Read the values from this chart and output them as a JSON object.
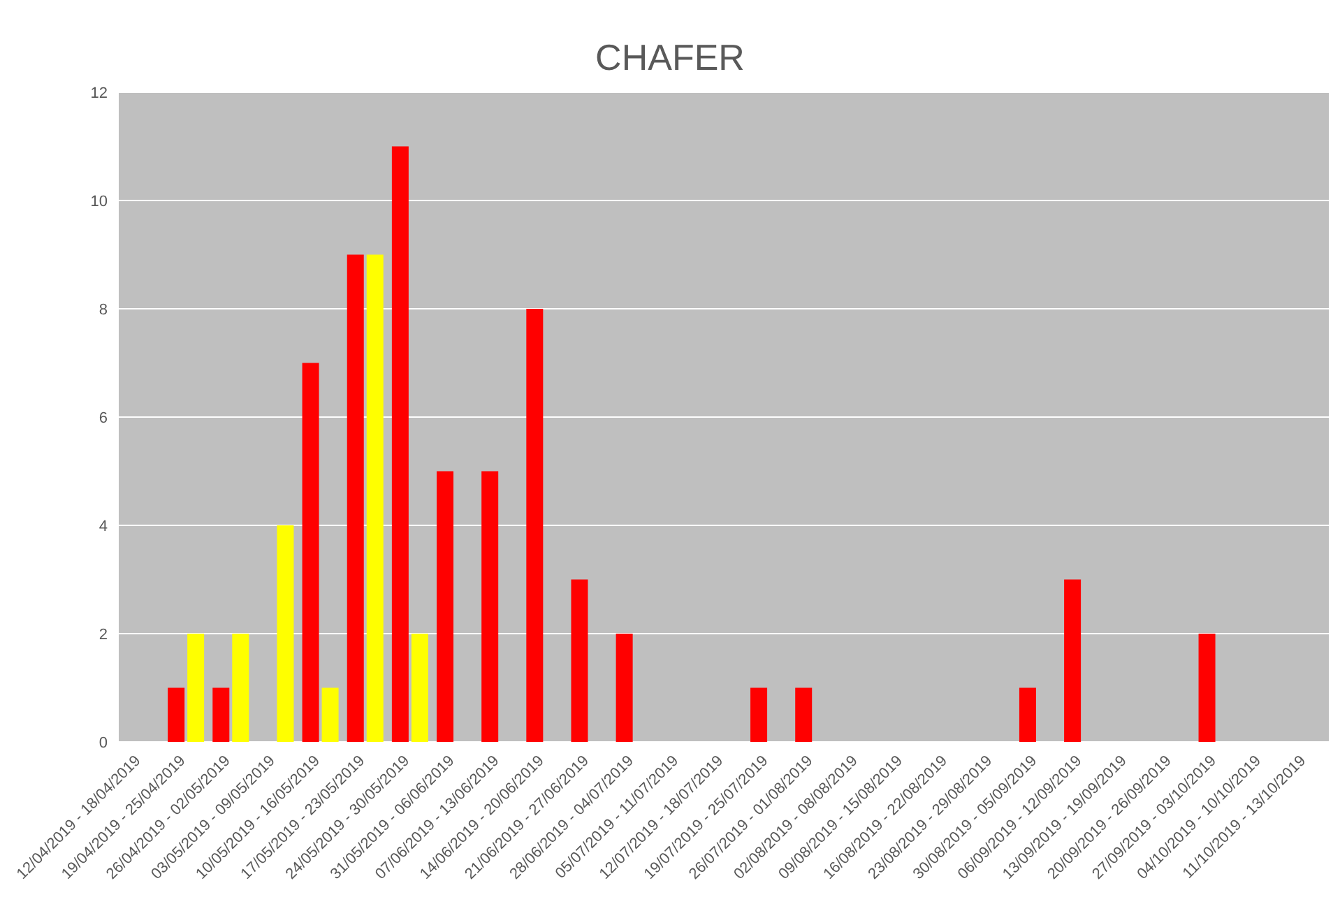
{
  "chart_data": {
    "type": "bar",
    "title": "CHAFER",
    "categories": [
      "12/04/2019 - 18/04/2019",
      "19/04/2019 - 25/04/2019",
      "26/04/2019 - 02/05/2019",
      "03/05/2019 - 09/05/2019",
      "10/05/2019 - 16/05/2019",
      "17/05/2019 - 23/05/2019",
      "24/05/2019 - 30/05/2019",
      "31/05/2019 - 06/06/2019",
      "07/06/2019 - 13/06/2019",
      "14/06/2019 - 20/06/2019",
      "21/06/2019 - 27/06/2019",
      "28/06/2019 - 04/07/2019",
      "05/07/2019 - 11/07/2019",
      "12/07/2019 - 18/07/2019",
      "19/07/2019 - 25/07/2019",
      "26/07/2019 - 01/08/2019",
      "02/08/2019 - 08/08/2019",
      "09/08/2019 - 15/08/2019",
      "16/08/2019 - 22/08/2019",
      "23/08/2019 - 29/08/2019",
      "30/08/2019 - 05/09/2019",
      "06/09/2019 - 12/09/2019",
      "13/09/2019 - 19/09/2019",
      "20/09/2019 - 26/09/2019",
      "27/09/2019 - 03/10/2019",
      "04/10/2019 - 10/10/2019",
      "11/10/2019 - 13/10/2019"
    ],
    "series": [
      {
        "color": "#ff0000",
        "values": [
          0,
          1,
          1,
          0,
          7,
          9,
          11,
          5,
          5,
          8,
          3,
          2,
          0,
          0,
          1,
          1,
          0,
          0,
          0,
          0,
          1,
          3,
          0,
          0,
          2,
          0,
          0
        ]
      },
      {
        "color": "#ffff00",
        "values": [
          0,
          2,
          2,
          4,
          1,
          9,
          2,
          0,
          0,
          0,
          0,
          0,
          0,
          0,
          0,
          0,
          0,
          0,
          0,
          0,
          0,
          0,
          0,
          0,
          0,
          0,
          0
        ]
      }
    ],
    "ylim": [
      0,
      12
    ],
    "yticks": [
      0,
      2,
      4,
      6,
      8,
      10,
      12
    ],
    "grid": "y"
  }
}
